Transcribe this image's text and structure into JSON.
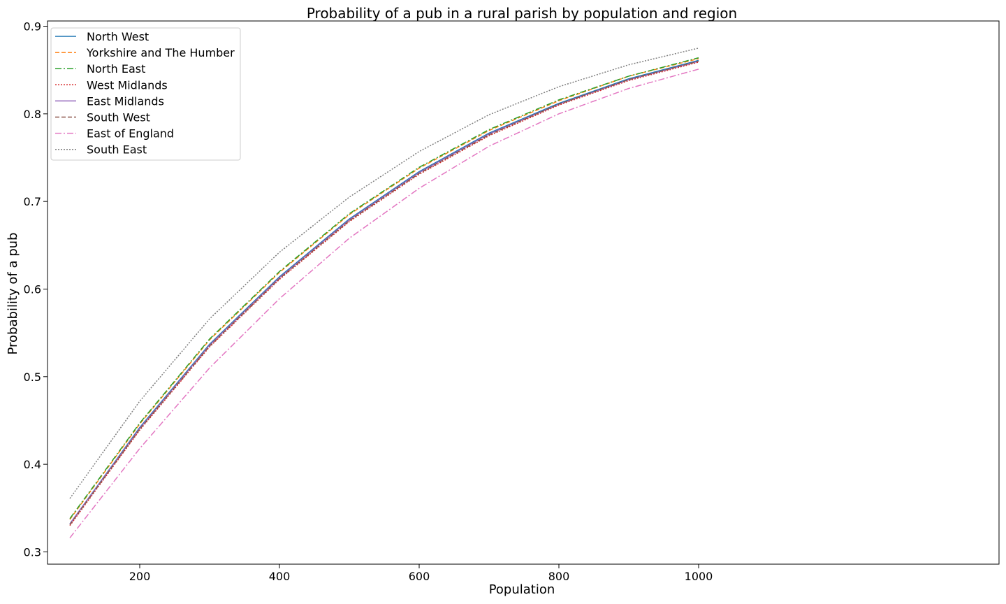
{
  "chart_data": {
    "type": "line",
    "title": "Probability of a pub in a rural parish by population and region",
    "xlabel": "Population",
    "ylabel": "Probability of a pub",
    "xlim": [
      68,
      1430
    ],
    "ylim": [
      0.286,
      0.906
    ],
    "xticks": [
      200,
      400,
      600,
      800,
      1000
    ],
    "yticks": [
      0.3,
      0.4,
      0.5,
      0.6,
      0.7,
      0.8,
      0.9
    ],
    "xtick_labels": [
      "200",
      "400",
      "600",
      "800",
      "1000"
    ],
    "ytick_labels": [
      "0.3",
      "0.4",
      "0.5",
      "0.6",
      "0.7",
      "0.8",
      "0.9"
    ],
    "grid": false,
    "legend_position": "upper-left",
    "x": [
      100,
      200,
      300,
      400,
      500,
      600,
      700,
      800,
      900,
      1000
    ],
    "series": [
      {
        "name": "North West",
        "color": "#1f77b4",
        "dash": "solid",
        "values": [
          0.332,
          0.442,
          0.537,
          0.614,
          0.68,
          0.734,
          0.778,
          0.812,
          0.84,
          0.861
        ]
      },
      {
        "name": "Yorkshire and The Humber",
        "color": "#ff7f0e",
        "dash": "dashed",
        "values": [
          0.337,
          0.446,
          0.542,
          0.619,
          0.685,
          0.738,
          0.781,
          0.815,
          0.843,
          0.863
        ]
      },
      {
        "name": "North East",
        "color": "#2ca02c",
        "dash": "dashdot",
        "values": [
          0.338,
          0.447,
          0.543,
          0.62,
          0.686,
          0.739,
          0.782,
          0.816,
          0.843,
          0.864
        ]
      },
      {
        "name": "West Midlands",
        "color": "#d62728",
        "dash": "dotted",
        "values": [
          0.33,
          0.439,
          0.534,
          0.611,
          0.677,
          0.731,
          0.775,
          0.81,
          0.838,
          0.859
        ]
      },
      {
        "name": "East Midlands",
        "color": "#9467bd",
        "dash": "solid",
        "values": [
          0.332,
          0.441,
          0.536,
          0.613,
          0.679,
          0.733,
          0.777,
          0.811,
          0.839,
          0.86
        ]
      },
      {
        "name": "South West",
        "color": "#8c564b",
        "dash": "dashed",
        "values": [
          0.331,
          0.44,
          0.535,
          0.612,
          0.678,
          0.732,
          0.776,
          0.811,
          0.839,
          0.86
        ]
      },
      {
        "name": "East of England",
        "color": "#e377c2",
        "dash": "dashdot",
        "values": [
          0.316,
          0.418,
          0.51,
          0.589,
          0.658,
          0.715,
          0.763,
          0.8,
          0.829,
          0.851
        ]
      },
      {
        "name": "South East",
        "color": "#7f7f7f",
        "dash": "dotted",
        "values": [
          0.361,
          0.472,
          0.566,
          0.642,
          0.705,
          0.757,
          0.799,
          0.831,
          0.856,
          0.875
        ]
      }
    ]
  }
}
